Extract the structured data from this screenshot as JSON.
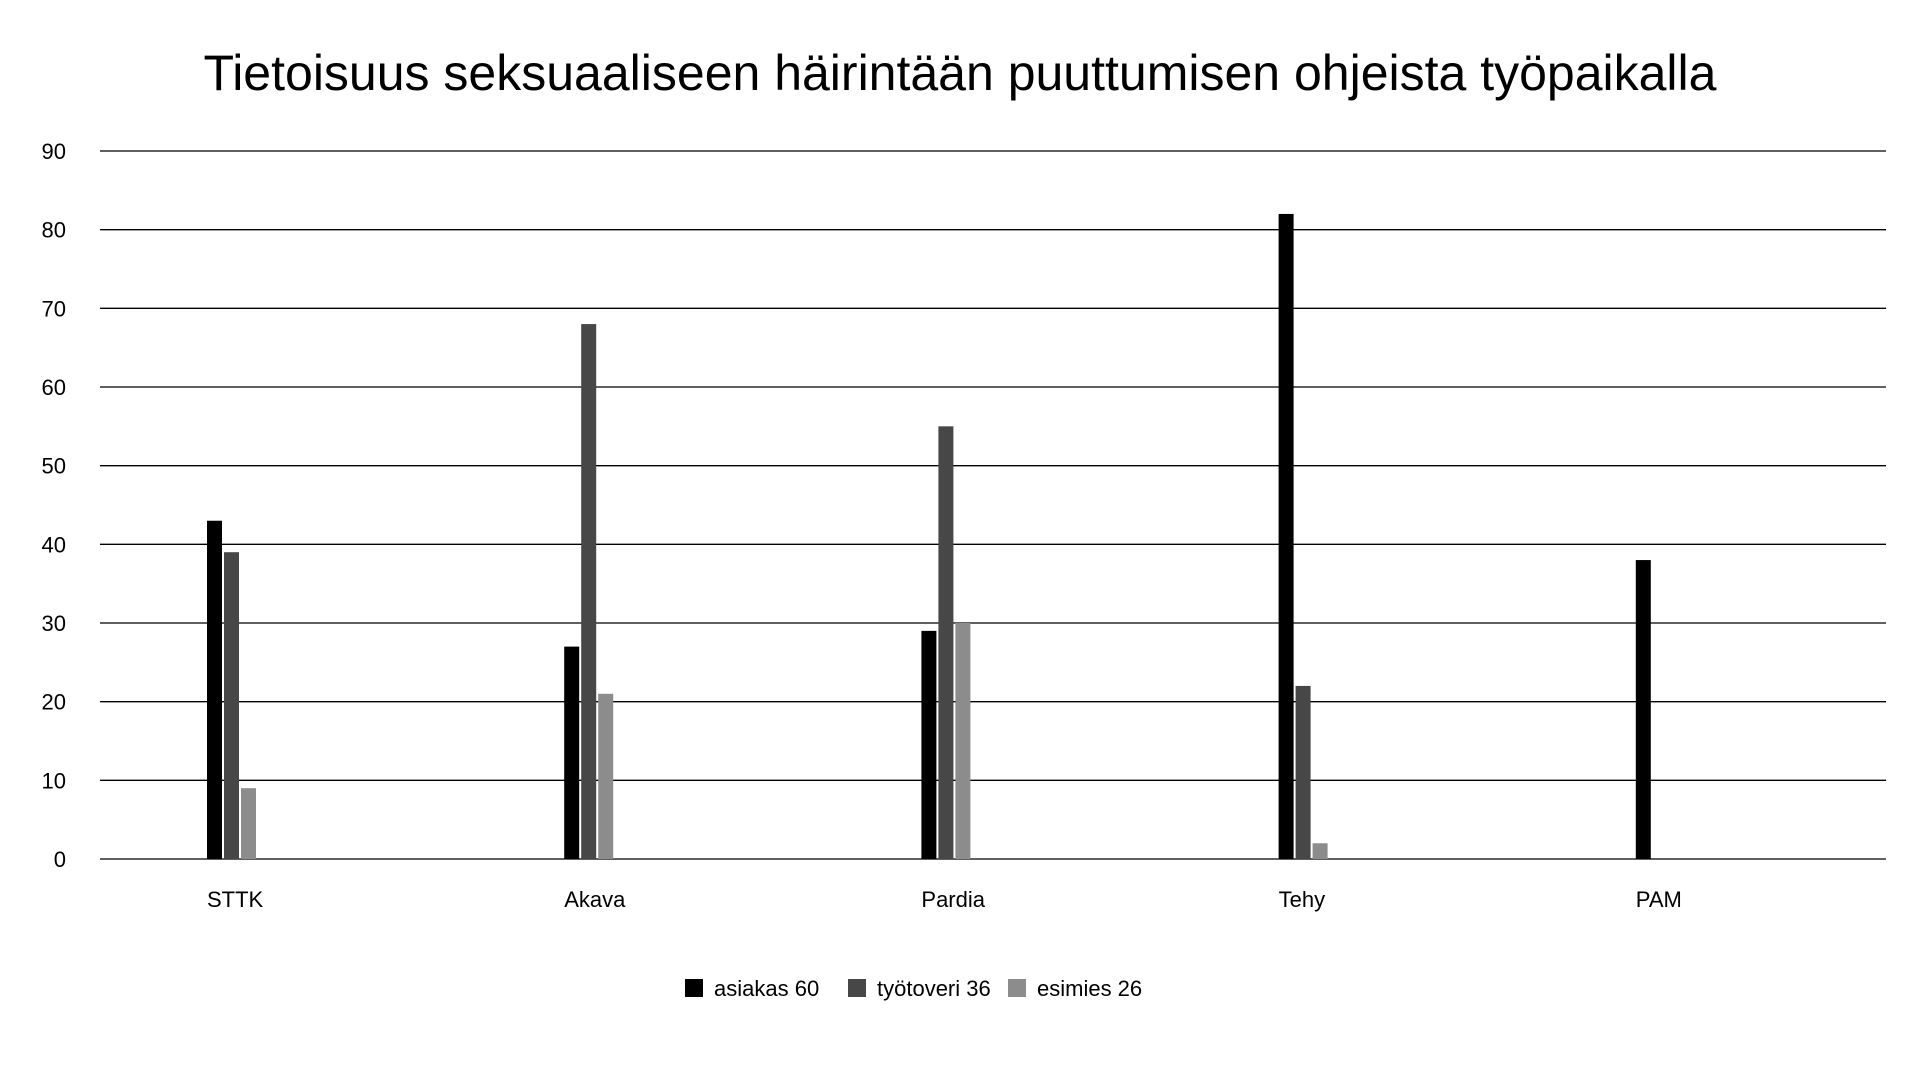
{
  "chart_data": {
    "type": "bar",
    "title": "Tietoisuus seksuaaliseen häirintään puuttumisen ohjeista työpaikalla",
    "categories": [
      "STTK",
      "Akava",
      "Pardia",
      "Tehy",
      "PAM"
    ],
    "series": [
      {
        "name": "asiakas 60",
        "color": "#000000",
        "values": [
          43,
          27,
          29,
          82,
          38
        ]
      },
      {
        "name": "työtoveri 36",
        "color": "#474747",
        "values": [
          39,
          68,
          55,
          22,
          0
        ]
      },
      {
        "name": "esimies 26",
        "color": "#8c8c8c",
        "values": [
          9,
          21,
          30,
          2,
          0
        ]
      }
    ],
    "ylim": [
      0,
      90
    ],
    "yticks": [
      0,
      10,
      20,
      30,
      40,
      50,
      60,
      70,
      80,
      90
    ],
    "grid": true,
    "legend_position": "bottom"
  }
}
